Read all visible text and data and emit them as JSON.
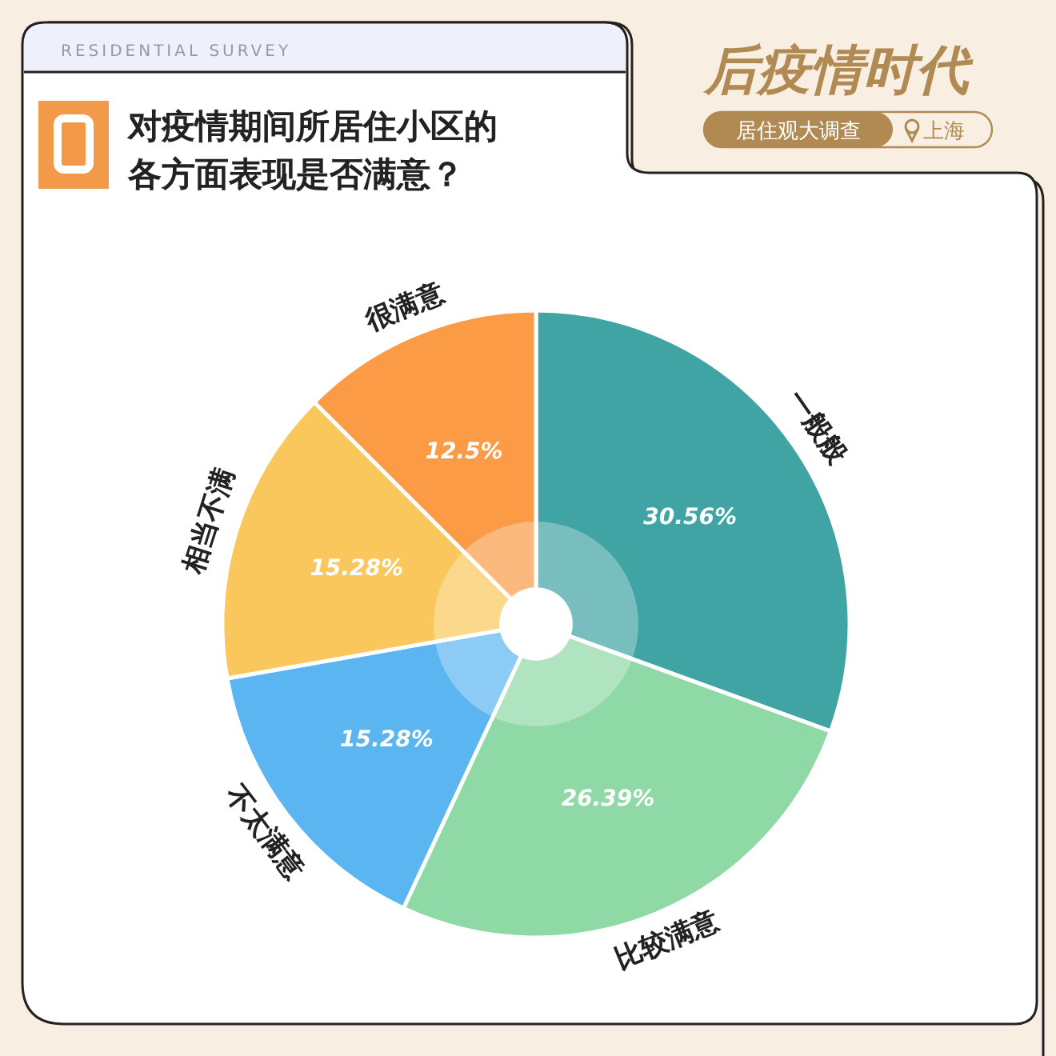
{
  "chart_data": {
    "type": "donut",
    "title": "对疫情期间所居住小区的各方面表现是否满意？",
    "subtitle": "后疫情时代",
    "annotations": [
      "RESIDENTIAL SURVEY",
      "居住观大调查",
      "上海"
    ],
    "categories": [
      "一般般",
      "比较满意",
      "不太满意",
      "相当不满",
      "很满意"
    ],
    "values": [
      30.56,
      26.39,
      15.28,
      15.28,
      12.5
    ],
    "value_labels": [
      "30.56%",
      "26.39%",
      "15.28%",
      "15.28%",
      "12.5%"
    ],
    "colors": [
      "#40a3a4",
      "#8fd9a6",
      "#5bb5f1",
      "#f9c75b",
      "#fb9b45"
    ]
  }
}
